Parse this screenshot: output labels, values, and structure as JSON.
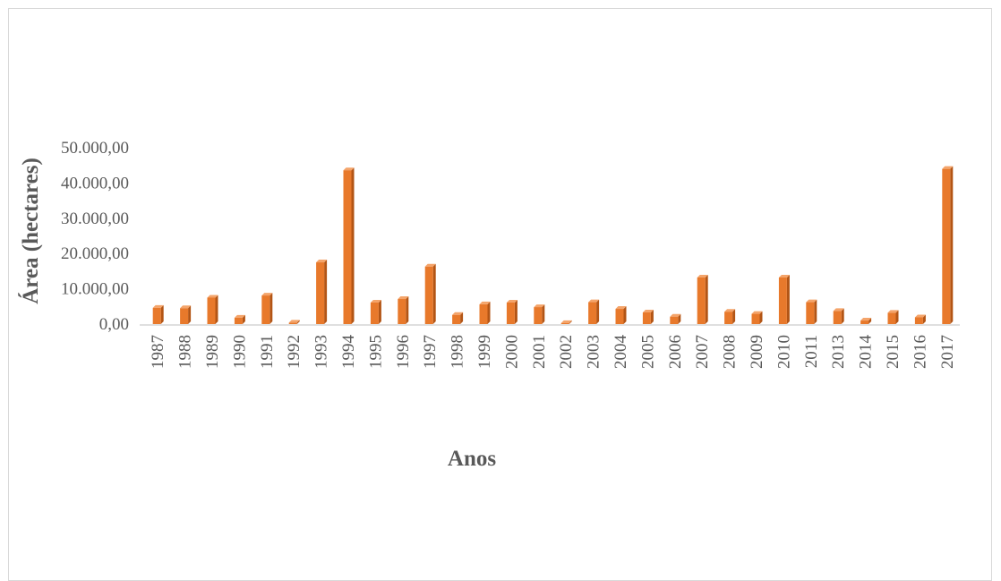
{
  "chart_data": {
    "type": "bar",
    "title": "",
    "xlabel": "Anos",
    "ylabel": "Área (hectares)",
    "ylim": [
      0,
      50000
    ],
    "yticks": [
      "0,00",
      "10.000,00",
      "20.000,00",
      "30.000,00",
      "40.000,00",
      "50.000,00"
    ],
    "grid": false,
    "legend": "none",
    "categories": [
      "1987",
      "1988",
      "1989",
      "1990",
      "1991",
      "1992",
      "1993",
      "1994",
      "1995",
      "1996",
      "1997",
      "1998",
      "1999",
      "2000",
      "2001",
      "2002",
      "2003",
      "2004",
      "2005",
      "2006",
      "2007",
      "2008",
      "2009",
      "2010",
      "2011",
      "2013",
      "2014",
      "2015",
      "2016",
      "2017"
    ],
    "values": [
      4600,
      4500,
      7500,
      1800,
      8100,
      400,
      17500,
      43600,
      6100,
      7100,
      16300,
      2600,
      5600,
      6100,
      4800,
      300,
      6200,
      4300,
      3300,
      2100,
      13200,
      3500,
      2900,
      13200,
      6200,
      3700,
      1000,
      3200,
      1900,
      44000
    ],
    "bar_color": "#e8792b",
    "bar_side_color": "#b35515",
    "bar_top_color": "#f4a46a"
  }
}
